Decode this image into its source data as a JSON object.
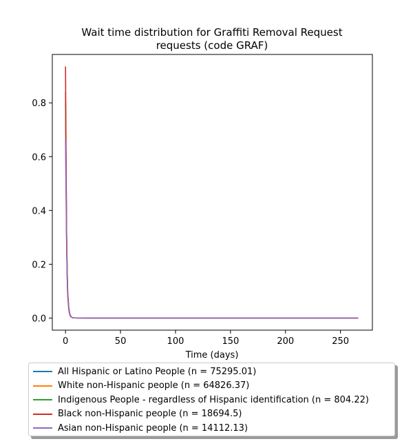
{
  "chart_data": {
    "type": "line",
    "title_line1": "Wait time distribution  for Graffiti Removal Request",
    "title_line2": "requests (code GRAF)",
    "xlabel": "Time (days)",
    "ylabel": "",
    "xlim": [
      -12,
      279
    ],
    "ylim": [
      -0.045,
      0.98
    ],
    "xticks": [
      0,
      50,
      100,
      150,
      200,
      250
    ],
    "yticks": [
      0.0,
      0.2,
      0.4,
      0.6,
      0.8
    ],
    "grid": false,
    "legend_position": "below",
    "x": [
      0,
      0.5,
      1,
      1.5,
      2,
      3,
      4,
      5,
      6,
      8,
      10,
      15,
      20,
      30,
      50,
      100,
      150,
      200,
      250,
      266
    ],
    "series": [
      {
        "name": "All Hispanic or Latino People (n = 75295.01)",
        "color": "#1f77b4",
        "values": [
          0.84,
          0.55,
          0.3,
          0.17,
          0.09,
          0.035,
          0.012,
          0.005,
          0.002,
          0.0008,
          0.0004,
          0.0002,
          0.0001,
          5e-05,
          2e-05,
          1e-05,
          0,
          0,
          0,
          0
        ]
      },
      {
        "name": "White non-Hispanic people (n = 64826.37)",
        "color": "#ff7f0e",
        "values": [
          0.83,
          0.54,
          0.3,
          0.17,
          0.09,
          0.035,
          0.012,
          0.005,
          0.002,
          0.0008,
          0.0004,
          0.0002,
          0.0001,
          5e-05,
          2e-05,
          1e-05,
          0,
          0,
          0,
          0
        ]
      },
      {
        "name": "Indigenous People - regardless of Hispanic identification (n = 804.22)",
        "color": "#2ca02c",
        "values": [
          0.8,
          0.52,
          0.29,
          0.16,
          0.085,
          0.032,
          0.011,
          0.004,
          0.002,
          0.0008,
          0.0004,
          0.0002,
          0.0001,
          5e-05,
          2e-05,
          1e-05,
          0,
          0,
          0,
          0
        ]
      },
      {
        "name": "Black non-Hispanic people (n = 18694.5)",
        "color": "#d62728",
        "values": [
          0.935,
          0.6,
          0.32,
          0.18,
          0.095,
          0.037,
          0.013,
          0.005,
          0.002,
          0.0008,
          0.0004,
          0.0002,
          0.0001,
          5e-05,
          2e-05,
          1e-05,
          0,
          0,
          0,
          0
        ]
      },
      {
        "name": "Asian non-Hispanic people (n = 14112.13)",
        "color": "#9467bd",
        "values": [
          0.66,
          0.46,
          0.27,
          0.15,
          0.08,
          0.03,
          0.01,
          0.004,
          0.002,
          0.0008,
          0.0004,
          0.0002,
          0.0001,
          5e-05,
          2e-05,
          1e-05,
          0,
          0,
          0,
          0
        ]
      }
    ]
  }
}
